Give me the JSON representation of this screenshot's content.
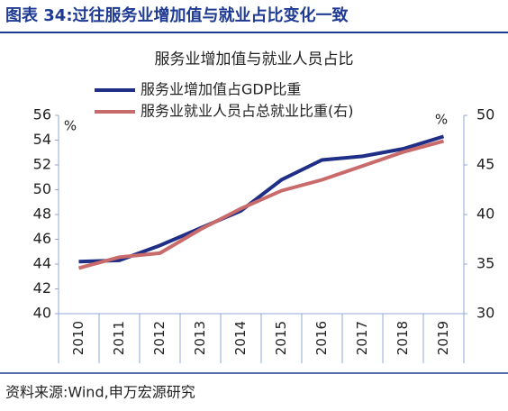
{
  "header": {
    "title": "图表 34:过往服务业增加值与就业占比变化一致"
  },
  "chart_data": {
    "type": "line",
    "title": "服务业增加值与就业人员占比",
    "categories": [
      "2010",
      "2011",
      "2012",
      "2013",
      "2014",
      "2015",
      "2016",
      "2017",
      "2018",
      "2019"
    ],
    "series": [
      {
        "name": "服务业增加值占GDP比重",
        "color": "#1f2e87",
        "values": [
          44.2,
          44.3,
          45.5,
          46.9,
          48.3,
          50.8,
          52.4,
          52.7,
          53.3,
          54.3
        ]
      },
      {
        "name": "服务业就业人员占总就业比重(右)",
        "color": "#c96b6b",
        "axis": "y2",
        "values": [
          34.6,
          35.7,
          36.1,
          38.5,
          40.6,
          42.4,
          43.5,
          44.9,
          46.3,
          47.4
        ]
      }
    ],
    "ylim": [
      40,
      56
    ],
    "yticks": [
      40,
      42,
      44,
      46,
      48,
      50,
      52,
      54,
      56
    ],
    "y2lim": [
      30,
      50
    ],
    "y2ticks": [
      30,
      35,
      40,
      45,
      50
    ],
    "ylabel": "%",
    "y2label": "%"
  },
  "footer": {
    "source": "资料来源:Wind,申万宏源研究"
  }
}
